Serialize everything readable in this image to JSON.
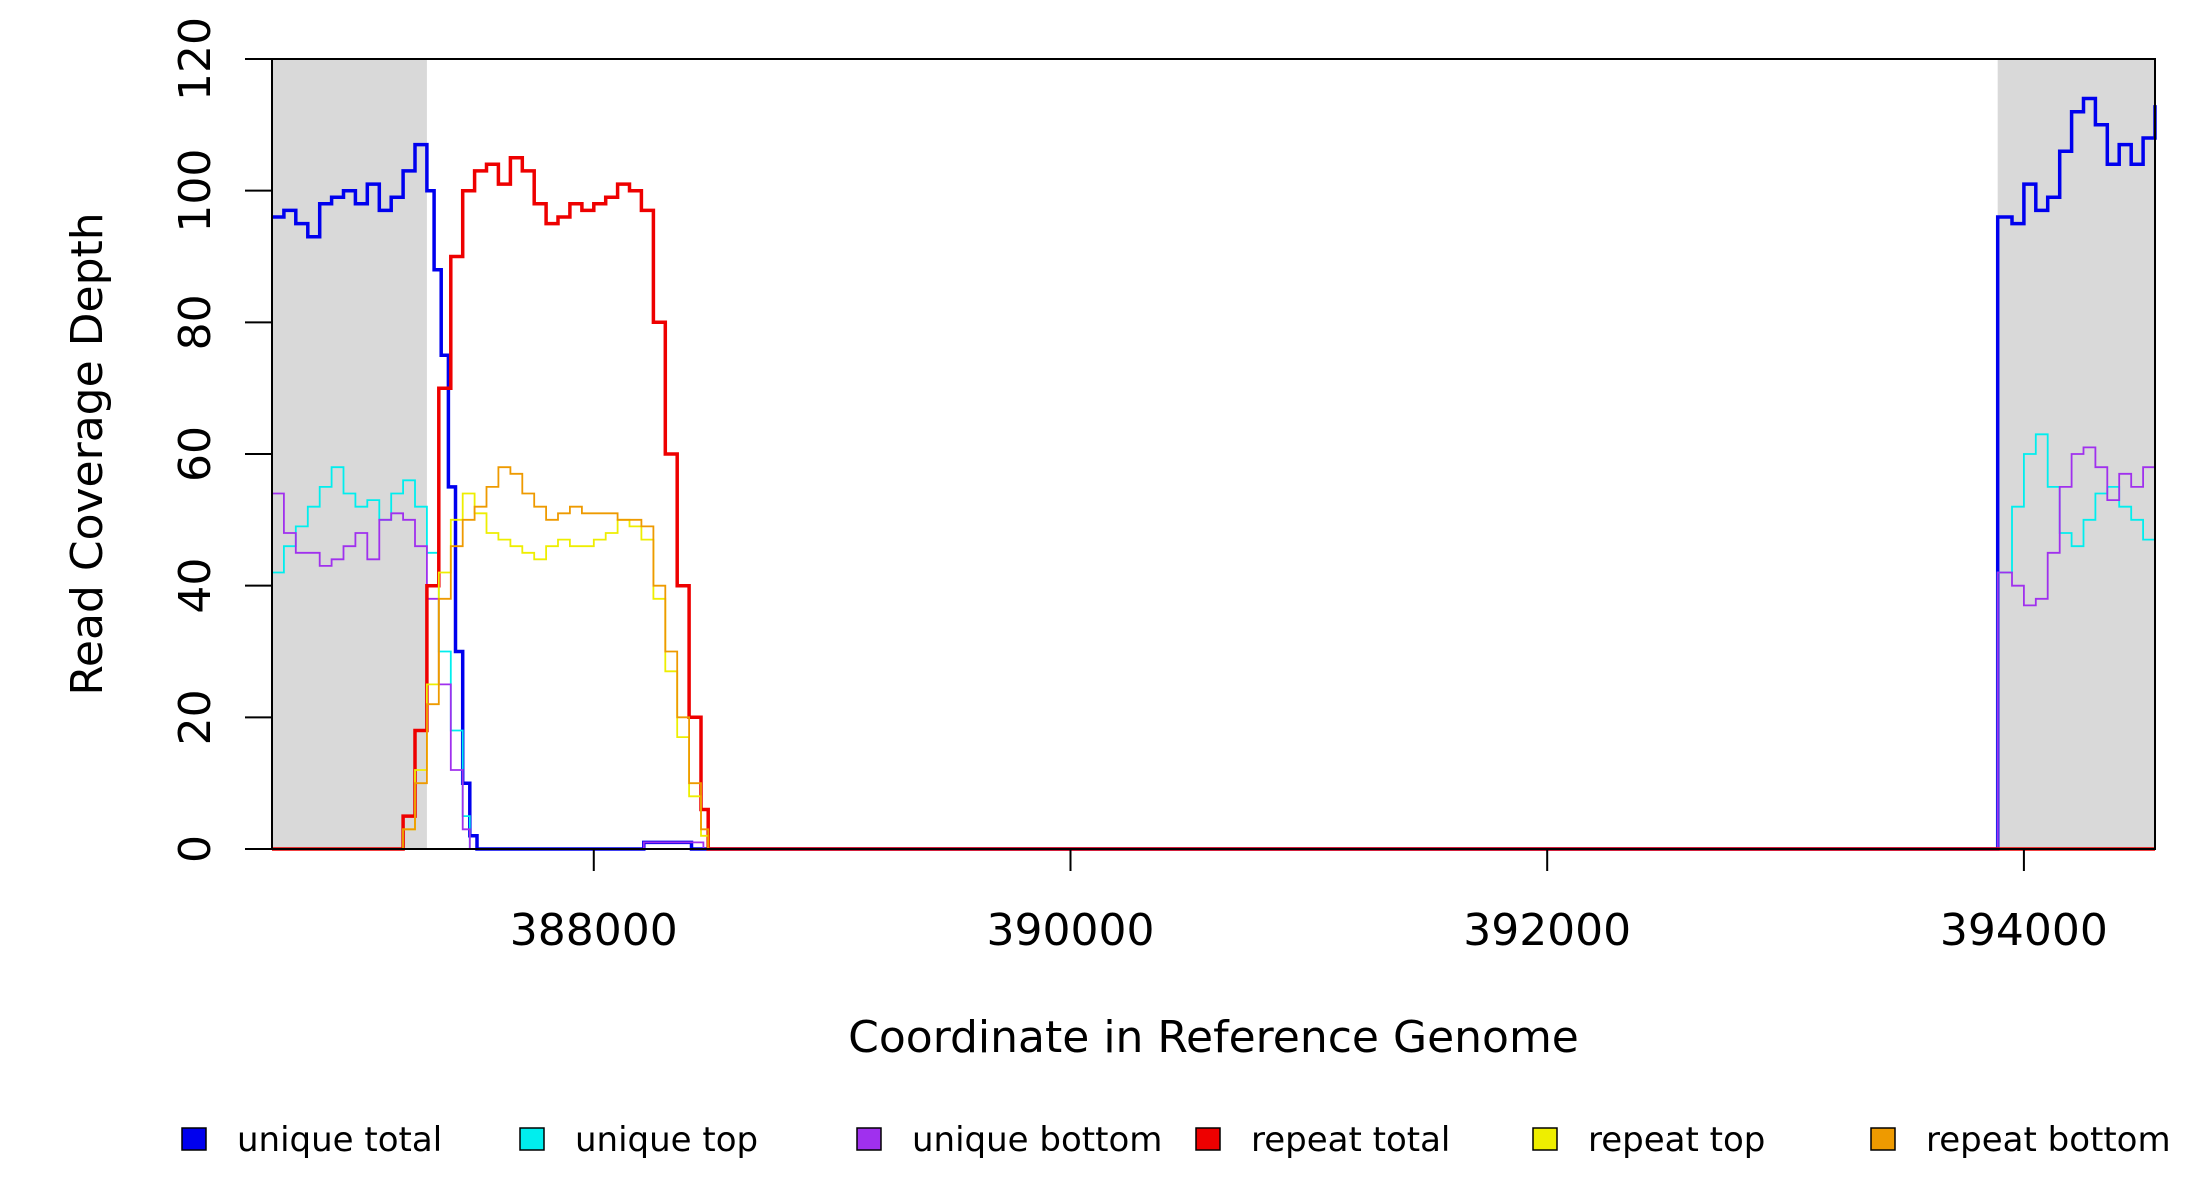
{
  "chart_data": {
    "type": "line",
    "xlabel": "Coordinate in Reference Genome",
    "ylabel": "Read Coverage Depth",
    "xlim": [
      386650,
      394550
    ],
    "ylim": [
      0,
      120
    ],
    "x_ticks": [
      388000,
      390000,
      392000,
      394000
    ],
    "y_ticks": [
      0,
      20,
      40,
      60,
      80,
      100,
      120
    ],
    "x_tick_labels": [
      "388000",
      "390000",
      "392000",
      "394000"
    ],
    "y_tick_labels": [
      "0",
      "20",
      "40",
      "60",
      "80",
      "100",
      "120"
    ],
    "shaded_regions": [
      [
        386650,
        387300
      ],
      [
        393890,
        394550
      ]
    ],
    "legend_position": "bottom",
    "series": [
      {
        "name": "unique total",
        "color": "#0000ee",
        "points": [
          [
            386650,
            96
          ],
          [
            386700,
            97
          ],
          [
            386750,
            95
          ],
          [
            386800,
            93
          ],
          [
            386850,
            98
          ],
          [
            386900,
            99
          ],
          [
            386950,
            100
          ],
          [
            387000,
            98
          ],
          [
            387050,
            101
          ],
          [
            387100,
            97
          ],
          [
            387150,
            99
          ],
          [
            387200,
            103
          ],
          [
            387250,
            107
          ],
          [
            387300,
            100
          ],
          [
            387330,
            88
          ],
          [
            387360,
            75
          ],
          [
            387390,
            55
          ],
          [
            387420,
            30
          ],
          [
            387450,
            10
          ],
          [
            387480,
            2
          ],
          [
            387510,
            0
          ],
          [
            388200,
            0
          ],
          [
            388210,
            1
          ],
          [
            388400,
            1
          ],
          [
            388410,
            0
          ],
          [
            393880,
            0
          ],
          [
            393890,
            96
          ],
          [
            393950,
            95
          ],
          [
            394000,
            101
          ],
          [
            394050,
            97
          ],
          [
            394100,
            99
          ],
          [
            394150,
            106
          ],
          [
            394200,
            112
          ],
          [
            394250,
            114
          ],
          [
            394300,
            110
          ],
          [
            394350,
            104
          ],
          [
            394400,
            107
          ],
          [
            394450,
            104
          ],
          [
            394500,
            108
          ],
          [
            394550,
            113
          ]
        ]
      },
      {
        "name": "unique top",
        "color": "#00eeee",
        "points": [
          [
            386650,
            42
          ],
          [
            386700,
            46
          ],
          [
            386750,
            49
          ],
          [
            386800,
            52
          ],
          [
            386850,
            55
          ],
          [
            386900,
            58
          ],
          [
            386950,
            54
          ],
          [
            387000,
            52
          ],
          [
            387050,
            53
          ],
          [
            387100,
            50
          ],
          [
            387150,
            54
          ],
          [
            387200,
            56
          ],
          [
            387250,
            52
          ],
          [
            387300,
            45
          ],
          [
            387350,
            30
          ],
          [
            387400,
            18
          ],
          [
            387450,
            5
          ],
          [
            387480,
            0
          ],
          [
            393880,
            0
          ],
          [
            393890,
            42
          ],
          [
            393950,
            52
          ],
          [
            394000,
            60
          ],
          [
            394050,
            63
          ],
          [
            394100,
            55
          ],
          [
            394150,
            48
          ],
          [
            394200,
            46
          ],
          [
            394250,
            50
          ],
          [
            394300,
            54
          ],
          [
            394350,
            55
          ],
          [
            394400,
            52
          ],
          [
            394450,
            50
          ],
          [
            394500,
            47
          ],
          [
            394550,
            53
          ]
        ]
      },
      {
        "name": "unique bottom",
        "color": "#a030ee",
        "points": [
          [
            386650,
            54
          ],
          [
            386700,
            48
          ],
          [
            386750,
            45
          ],
          [
            386800,
            45
          ],
          [
            386850,
            43
          ],
          [
            386900,
            44
          ],
          [
            386950,
            46
          ],
          [
            387000,
            48
          ],
          [
            387050,
            44
          ],
          [
            387100,
            50
          ],
          [
            387150,
            51
          ],
          [
            387200,
            50
          ],
          [
            387250,
            46
          ],
          [
            387300,
            38
          ],
          [
            387350,
            25
          ],
          [
            387400,
            12
          ],
          [
            387450,
            3
          ],
          [
            387480,
            0
          ],
          [
            388200,
            0
          ],
          [
            388210,
            1
          ],
          [
            388450,
            1
          ],
          [
            388460,
            0
          ],
          [
            393880,
            0
          ],
          [
            393890,
            42
          ],
          [
            393950,
            40
          ],
          [
            394000,
            37
          ],
          [
            394050,
            38
          ],
          [
            394100,
            45
          ],
          [
            394150,
            55
          ],
          [
            394200,
            60
          ],
          [
            394250,
            61
          ],
          [
            394300,
            58
          ],
          [
            394350,
            53
          ],
          [
            394400,
            57
          ],
          [
            394450,
            55
          ],
          [
            394500,
            58
          ],
          [
            394550,
            60
          ]
        ]
      },
      {
        "name": "repeat total",
        "color": "#ee0000",
        "points": [
          [
            386650,
            0
          ],
          [
            387150,
            0
          ],
          [
            387200,
            5
          ],
          [
            387250,
            18
          ],
          [
            387300,
            40
          ],
          [
            387350,
            70
          ],
          [
            387400,
            90
          ],
          [
            387450,
            100
          ],
          [
            387500,
            103
          ],
          [
            387550,
            104
          ],
          [
            387600,
            101
          ],
          [
            387650,
            105
          ],
          [
            387700,
            103
          ],
          [
            387750,
            98
          ],
          [
            387800,
            95
          ],
          [
            387850,
            96
          ],
          [
            387900,
            98
          ],
          [
            387950,
            97
          ],
          [
            388000,
            98
          ],
          [
            388050,
            99
          ],
          [
            388100,
            101
          ],
          [
            388150,
            100
          ],
          [
            388200,
            97
          ],
          [
            388250,
            80
          ],
          [
            388300,
            60
          ],
          [
            388350,
            40
          ],
          [
            388400,
            20
          ],
          [
            388450,
            6
          ],
          [
            388480,
            0
          ],
          [
            394550,
            0
          ]
        ]
      },
      {
        "name": "repeat top",
        "color": "#eeee00",
        "points": [
          [
            386650,
            0
          ],
          [
            387150,
            0
          ],
          [
            387200,
            3
          ],
          [
            387250,
            12
          ],
          [
            387300,
            25
          ],
          [
            387350,
            42
          ],
          [
            387400,
            50
          ],
          [
            387450,
            54
          ],
          [
            387500,
            51
          ],
          [
            387550,
            48
          ],
          [
            387600,
            47
          ],
          [
            387650,
            46
          ],
          [
            387700,
            45
          ],
          [
            387750,
            44
          ],
          [
            387800,
            46
          ],
          [
            387850,
            47
          ],
          [
            387900,
            46
          ],
          [
            387950,
            46
          ],
          [
            388000,
            47
          ],
          [
            388050,
            48
          ],
          [
            388100,
            50
          ],
          [
            388150,
            49
          ],
          [
            388200,
            47
          ],
          [
            388250,
            38
          ],
          [
            388300,
            27
          ],
          [
            388350,
            17
          ],
          [
            388400,
            8
          ],
          [
            388450,
            2
          ],
          [
            388480,
            0
          ],
          [
            394550,
            0
          ]
        ]
      },
      {
        "name": "repeat bottom",
        "color": "#ee9a00",
        "points": [
          [
            386650,
            0
          ],
          [
            387150,
            0
          ],
          [
            387200,
            3
          ],
          [
            387250,
            10
          ],
          [
            387300,
            22
          ],
          [
            387350,
            38
          ],
          [
            387400,
            46
          ],
          [
            387450,
            50
          ],
          [
            387500,
            52
          ],
          [
            387550,
            55
          ],
          [
            387600,
            58
          ],
          [
            387650,
            57
          ],
          [
            387700,
            54
          ],
          [
            387750,
            52
          ],
          [
            387800,
            50
          ],
          [
            387850,
            51
          ],
          [
            387900,
            52
          ],
          [
            387950,
            51
          ],
          [
            388000,
            51
          ],
          [
            388050,
            51
          ],
          [
            388100,
            50
          ],
          [
            388150,
            50
          ],
          [
            388200,
            49
          ],
          [
            388250,
            40
          ],
          [
            388300,
            30
          ],
          [
            388350,
            20
          ],
          [
            388400,
            10
          ],
          [
            388450,
            3
          ],
          [
            388480,
            0
          ],
          [
            394550,
            0
          ]
        ]
      }
    ]
  }
}
